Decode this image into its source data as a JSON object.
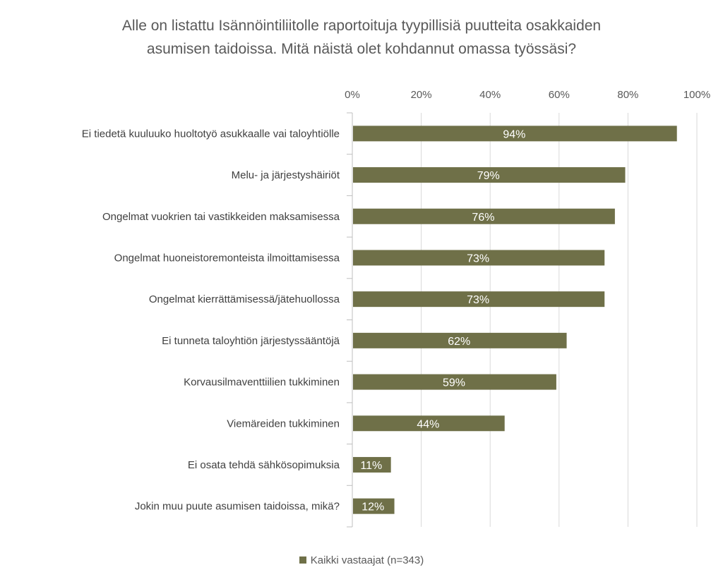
{
  "chart_data": {
    "type": "bar",
    "orientation": "horizontal",
    "title_lines": [
      "Alle on listattu Isännöintiliitolle raportoituja tyypillisiä puutteita osakkaiden",
      "asumisen taidoissa. Mitä näistä olet kohdannut omassa työssäsi?"
    ],
    "categories": [
      "Ei tiedetä kuuluuko huoltotyö asukkaalle vai taloyhtiölle",
      "Melu- ja järjestyshäiriöt",
      "Ongelmat vuokrien tai vastikkeiden maksamisessa",
      "Ongelmat huoneistoremonteista ilmoittamisessa",
      "Ongelmat kierrättämisessä/jätehuollossa",
      "Ei tunneta taloyhtiön järjestyssääntöjä",
      "Korvausilmaventtiilien tukkiminen",
      "Viemäreiden tukkiminen",
      "Ei osata tehdä sähkösopimuksia",
      "Jokin muu puute asumisen taidoissa, mikä?"
    ],
    "series": [
      {
        "name": "Kaikki vastaajat (n=343)",
        "values": [
          94,
          79,
          76,
          73,
          73,
          62,
          59,
          44,
          11,
          12
        ],
        "color": "#6f7048"
      }
    ],
    "data_labels": [
      "94%",
      "79%",
      "76%",
      "73%",
      "73%",
      "62%",
      "59%",
      "44%",
      "11%",
      "12%"
    ],
    "x_ticks": [
      "0%",
      "20%",
      "40%",
      "60%",
      "80%",
      "100%"
    ],
    "x_tick_values": [
      0,
      20,
      40,
      60,
      80,
      100
    ],
    "xlim": [
      0,
      100
    ],
    "grid": true,
    "legend_position": "bottom",
    "legend_label": "Kaikki vastaajat (n=343)"
  }
}
